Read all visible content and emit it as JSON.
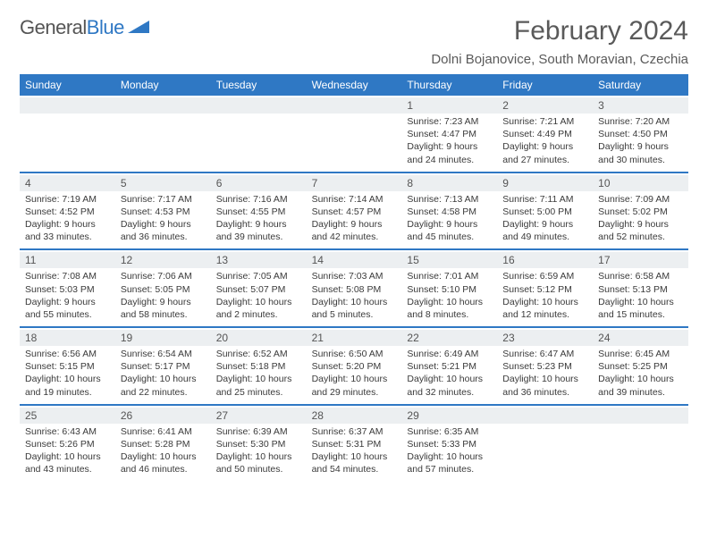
{
  "logo": {
    "word1": "General",
    "word2": "Blue"
  },
  "title": "February 2024",
  "location": "Dolni Bojanovice, South Moravian, Czechia",
  "colors": {
    "header_bg": "#2f78c4",
    "header_fg": "#ffffff",
    "daynum_bg": "#eceff1",
    "row_border": "#2f78c4",
    "text": "#3a3a3a"
  },
  "weekdays": [
    "Sunday",
    "Monday",
    "Tuesday",
    "Wednesday",
    "Thursday",
    "Friday",
    "Saturday"
  ],
  "weeks": [
    [
      null,
      null,
      null,
      null,
      {
        "n": "1",
        "sr": "7:23 AM",
        "ss": "4:47 PM",
        "dl1": "Daylight: 9 hours",
        "dl2": "and 24 minutes."
      },
      {
        "n": "2",
        "sr": "7:21 AM",
        "ss": "4:49 PM",
        "dl1": "Daylight: 9 hours",
        "dl2": "and 27 minutes."
      },
      {
        "n": "3",
        "sr": "7:20 AM",
        "ss": "4:50 PM",
        "dl1": "Daylight: 9 hours",
        "dl2": "and 30 minutes."
      }
    ],
    [
      {
        "n": "4",
        "sr": "7:19 AM",
        "ss": "4:52 PM",
        "dl1": "Daylight: 9 hours",
        "dl2": "and 33 minutes."
      },
      {
        "n": "5",
        "sr": "7:17 AM",
        "ss": "4:53 PM",
        "dl1": "Daylight: 9 hours",
        "dl2": "and 36 minutes."
      },
      {
        "n": "6",
        "sr": "7:16 AM",
        "ss": "4:55 PM",
        "dl1": "Daylight: 9 hours",
        "dl2": "and 39 minutes."
      },
      {
        "n": "7",
        "sr": "7:14 AM",
        "ss": "4:57 PM",
        "dl1": "Daylight: 9 hours",
        "dl2": "and 42 minutes."
      },
      {
        "n": "8",
        "sr": "7:13 AM",
        "ss": "4:58 PM",
        "dl1": "Daylight: 9 hours",
        "dl2": "and 45 minutes."
      },
      {
        "n": "9",
        "sr": "7:11 AM",
        "ss": "5:00 PM",
        "dl1": "Daylight: 9 hours",
        "dl2": "and 49 minutes."
      },
      {
        "n": "10",
        "sr": "7:09 AM",
        "ss": "5:02 PM",
        "dl1": "Daylight: 9 hours",
        "dl2": "and 52 minutes."
      }
    ],
    [
      {
        "n": "11",
        "sr": "7:08 AM",
        "ss": "5:03 PM",
        "dl1": "Daylight: 9 hours",
        "dl2": "and 55 minutes."
      },
      {
        "n": "12",
        "sr": "7:06 AM",
        "ss": "5:05 PM",
        "dl1": "Daylight: 9 hours",
        "dl2": "and 58 minutes."
      },
      {
        "n": "13",
        "sr": "7:05 AM",
        "ss": "5:07 PM",
        "dl1": "Daylight: 10 hours",
        "dl2": "and 2 minutes."
      },
      {
        "n": "14",
        "sr": "7:03 AM",
        "ss": "5:08 PM",
        "dl1": "Daylight: 10 hours",
        "dl2": "and 5 minutes."
      },
      {
        "n": "15",
        "sr": "7:01 AM",
        "ss": "5:10 PM",
        "dl1": "Daylight: 10 hours",
        "dl2": "and 8 minutes."
      },
      {
        "n": "16",
        "sr": "6:59 AM",
        "ss": "5:12 PM",
        "dl1": "Daylight: 10 hours",
        "dl2": "and 12 minutes."
      },
      {
        "n": "17",
        "sr": "6:58 AM",
        "ss": "5:13 PM",
        "dl1": "Daylight: 10 hours",
        "dl2": "and 15 minutes."
      }
    ],
    [
      {
        "n": "18",
        "sr": "6:56 AM",
        "ss": "5:15 PM",
        "dl1": "Daylight: 10 hours",
        "dl2": "and 19 minutes."
      },
      {
        "n": "19",
        "sr": "6:54 AM",
        "ss": "5:17 PM",
        "dl1": "Daylight: 10 hours",
        "dl2": "and 22 minutes."
      },
      {
        "n": "20",
        "sr": "6:52 AM",
        "ss": "5:18 PM",
        "dl1": "Daylight: 10 hours",
        "dl2": "and 25 minutes."
      },
      {
        "n": "21",
        "sr": "6:50 AM",
        "ss": "5:20 PM",
        "dl1": "Daylight: 10 hours",
        "dl2": "and 29 minutes."
      },
      {
        "n": "22",
        "sr": "6:49 AM",
        "ss": "5:21 PM",
        "dl1": "Daylight: 10 hours",
        "dl2": "and 32 minutes."
      },
      {
        "n": "23",
        "sr": "6:47 AM",
        "ss": "5:23 PM",
        "dl1": "Daylight: 10 hours",
        "dl2": "and 36 minutes."
      },
      {
        "n": "24",
        "sr": "6:45 AM",
        "ss": "5:25 PM",
        "dl1": "Daylight: 10 hours",
        "dl2": "and 39 minutes."
      }
    ],
    [
      {
        "n": "25",
        "sr": "6:43 AM",
        "ss": "5:26 PM",
        "dl1": "Daylight: 10 hours",
        "dl2": "and 43 minutes."
      },
      {
        "n": "26",
        "sr": "6:41 AM",
        "ss": "5:28 PM",
        "dl1": "Daylight: 10 hours",
        "dl2": "and 46 minutes."
      },
      {
        "n": "27",
        "sr": "6:39 AM",
        "ss": "5:30 PM",
        "dl1": "Daylight: 10 hours",
        "dl2": "and 50 minutes."
      },
      {
        "n": "28",
        "sr": "6:37 AM",
        "ss": "5:31 PM",
        "dl1": "Daylight: 10 hours",
        "dl2": "and 54 minutes."
      },
      {
        "n": "29",
        "sr": "6:35 AM",
        "ss": "5:33 PM",
        "dl1": "Daylight: 10 hours",
        "dl2": "and 57 minutes."
      },
      null,
      null
    ]
  ]
}
